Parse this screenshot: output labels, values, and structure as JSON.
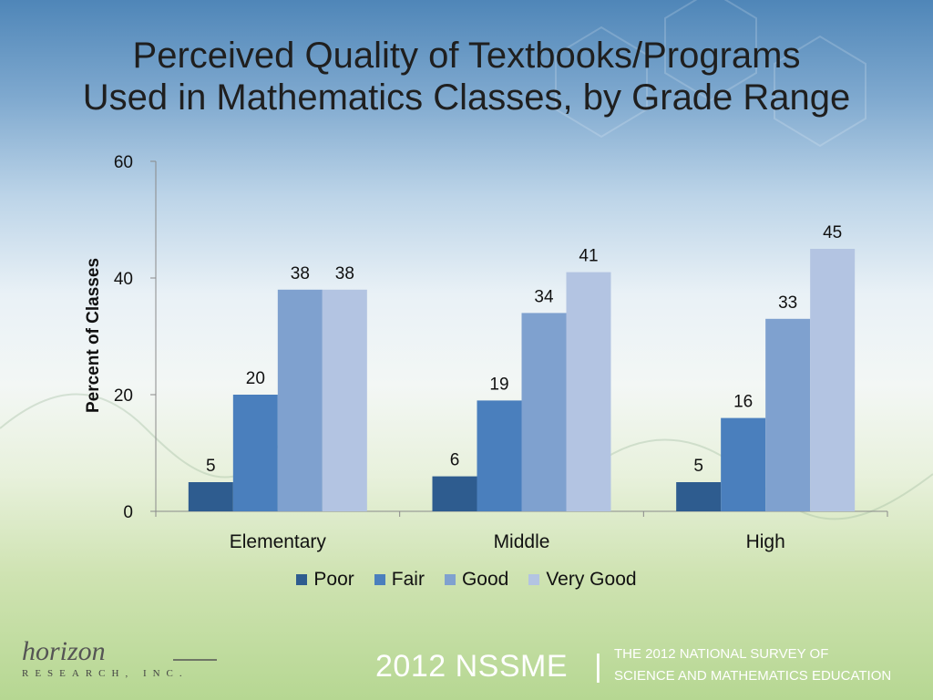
{
  "title_line1": "Perceived Quality of Textbooks/Programs",
  "title_line2": "Used in Mathematics Classes, by Grade Range",
  "chart_data": {
    "type": "bar",
    "title": "Perceived Quality of Textbooks/Programs Used in Mathematics Classes, by Grade Range",
    "xlabel": "",
    "ylabel": "Percent of Classes",
    "ylim": [
      0,
      60
    ],
    "yticks": [
      0,
      20,
      40,
      60
    ],
    "grid": false,
    "legend_position": "bottom",
    "categories": [
      "Elementary",
      "Middle",
      "High"
    ],
    "series": [
      {
        "name": "Poor",
        "values": [
          5,
          6,
          5
        ],
        "color": "#2e5c8f"
      },
      {
        "name": "Fair",
        "values": [
          20,
          19,
          16
        ],
        "color": "#4a7fbd"
      },
      {
        "name": "Good",
        "values": [
          38,
          34,
          33
        ],
        "color": "#7fa1cf"
      },
      {
        "name": "Very Good",
        "values": [
          38,
          41,
          45
        ],
        "color": "#b3c4e2"
      }
    ]
  },
  "footer": {
    "brand_big": "2012 NSSME",
    "separator": "|",
    "line1": "THE 2012 NATIONAL SURVEY OF",
    "line2": "SCIENCE AND MATHEMATICS EDUCATION"
  },
  "logo": {
    "script": "horizon",
    "subtitle": "RESEARCH, INC."
  }
}
